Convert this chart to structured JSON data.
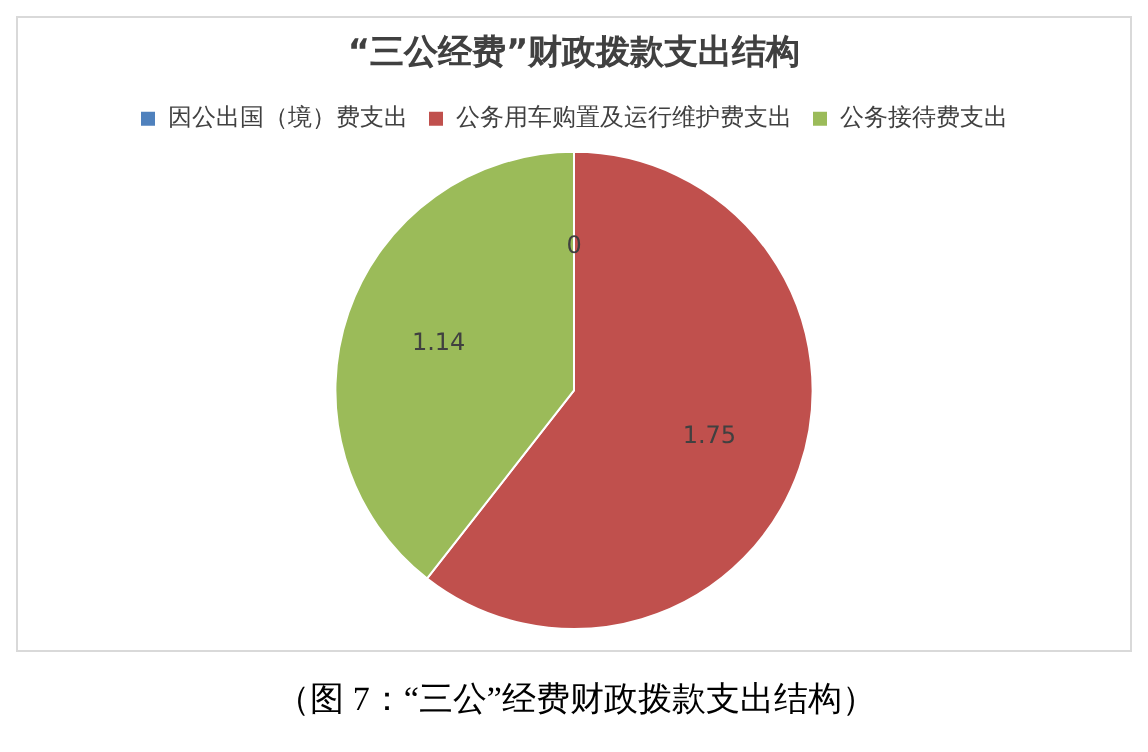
{
  "chart_data": {
    "type": "pie",
    "title": "“三公经费”财政拨款支出结构",
    "categories": [
      "因公出国（境）费支出",
      "公务用车购置及运行维护费支出",
      "公务接待费支出"
    ],
    "values": [
      0,
      1.75,
      1.14
    ],
    "colors": [
      "#4f81bd",
      "#c0504d",
      "#9bbb59"
    ],
    "value_labels": [
      "0",
      "1.75",
      "1.14"
    ],
    "legend": "top",
    "annotations": [
      "（图 7：“三公”经费财政拨款支出结构）"
    ]
  }
}
